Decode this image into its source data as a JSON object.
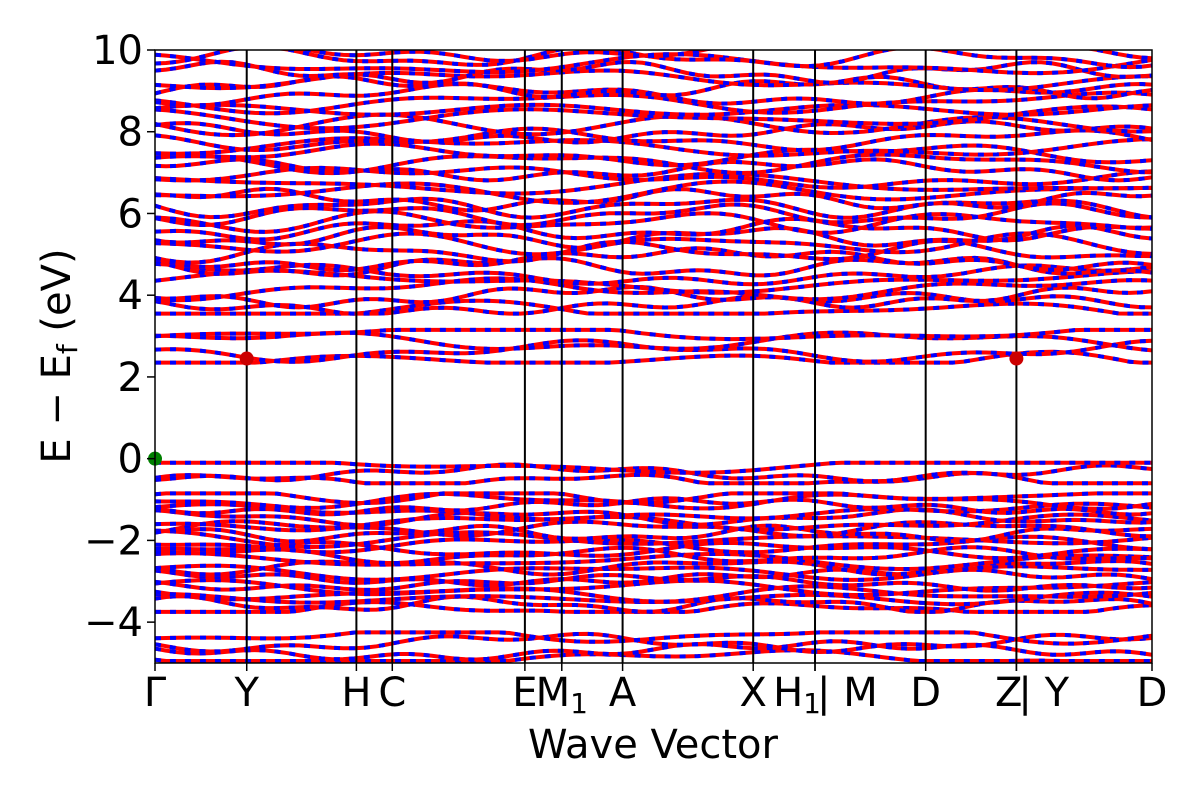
{
  "chart_data": {
    "type": "line",
    "title": "",
    "xlabel": "Wave Vector",
    "ylabel": "E − E_f (eV)",
    "ylabel_main": "E − E",
    "ylabel_sub": "f",
    "ylabel_tail": " (eV)",
    "ylim": [
      -5,
      10
    ],
    "xlim": [
      0,
      1
    ],
    "yticks": [
      -4,
      -2,
      0,
      2,
      4,
      6,
      8,
      10
    ],
    "ytick_labels": [
      "−4",
      "−2",
      "0",
      "2",
      "4",
      "6",
      "8",
      "10"
    ],
    "kpath": [
      {
        "x": 0.0,
        "label": "Γ"
      },
      {
        "x": 0.092,
        "label": "Y"
      },
      {
        "x": 0.202,
        "label": "H"
      },
      {
        "x": 0.238,
        "label": "C"
      },
      {
        "x": 0.371,
        "label": "E"
      },
      {
        "x": 0.408,
        "label": "M",
        "sub": "1"
      },
      {
        "x": 0.469,
        "label": "A"
      },
      {
        "x": 0.6,
        "label": "X"
      },
      {
        "x": 0.662,
        "label": "H",
        "sub": "1"
      },
      {
        "x": 0.662,
        "label": "| M"
      },
      {
        "x": 0.773,
        "label": "D"
      },
      {
        "x": 0.864,
        "label": "Z"
      },
      {
        "x": 0.864,
        "label": "| Y"
      },
      {
        "x": 1.0,
        "label": "D"
      }
    ],
    "series": [
      {
        "color": "#ff0000",
        "style": "solid"
      },
      {
        "color": "#0000ff",
        "style": "dashed"
      }
    ],
    "band_bands": [
      {
        "range": [
          -4.9,
          -4.3
        ],
        "count": 4
      },
      {
        "range": [
          -3.7,
          -0.9
        ],
        "count": 22
      },
      {
        "range": [
          -0.55,
          -0.15
        ],
        "count": 3
      },
      {
        "range": [
          2.4,
          3.1
        ],
        "count": 4
      },
      {
        "range": [
          3.6,
          10.0
        ],
        "count": 36
      }
    ],
    "markers": [
      {
        "x": 0.0,
        "y": 0.0,
        "color": "#008000",
        "label": "VBM"
      },
      {
        "x": 0.092,
        "y": 2.45,
        "color": "#cc0000",
        "label": "CBM"
      },
      {
        "x": 0.864,
        "y": 2.45,
        "color": "#cc0000",
        "label": "CBM"
      }
    ]
  }
}
